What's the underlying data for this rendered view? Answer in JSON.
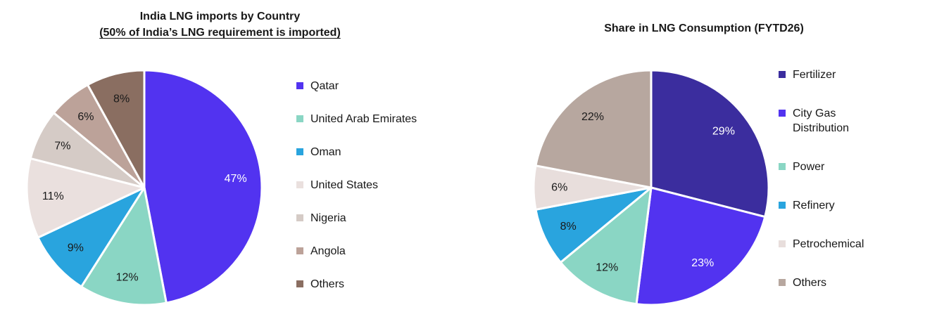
{
  "chart_data": [
    {
      "type": "pie",
      "title": "India LNG imports by Country",
      "subtitle": "(50% of India’s LNG requirement is imported)",
      "subtitle_underlined": true,
      "start_angle": "top",
      "direction": "clockwise",
      "legend_position": "right",
      "value_suffix": "%",
      "slices": [
        {
          "label": "Qatar",
          "value": 47,
          "color": "#5233F0",
          "text_color": "#FFFFFF"
        },
        {
          "label": "United Arab Emirates",
          "value": 12,
          "color": "#8AD6C4",
          "text_color": "#1A1A1A"
        },
        {
          "label": "Oman",
          "value": 9,
          "color": "#29A4DE",
          "text_color": "#1A1A1A"
        },
        {
          "label": "United States",
          "value": 11,
          "color": "#EAE0DE",
          "text_color": "#1A1A1A"
        },
        {
          "label": "Nigeria",
          "value": 7,
          "color": "#D5CBC6",
          "text_color": "#1A1A1A"
        },
        {
          "label": "Angola",
          "value": 6,
          "color": "#BCA299",
          "text_color": "#1A1A1A"
        },
        {
          "label": "Others",
          "value": 8,
          "color": "#8A6E61",
          "text_color": "#1A1A1A"
        }
      ]
    },
    {
      "type": "pie",
      "title": "Share in LNG Consumption (FYTD26)",
      "start_angle": "top",
      "direction": "clockwise",
      "legend_position": "right",
      "value_suffix": "%",
      "slices": [
        {
          "label": "Fertilizer",
          "value": 29,
          "color": "#3B2D9E",
          "text_color": "#FFFFFF"
        },
        {
          "label": "City Gas Distribution",
          "value": 23,
          "color": "#5233F0",
          "text_color": "#FFFFFF"
        },
        {
          "label": "Power",
          "value": 12,
          "color": "#8AD6C4",
          "text_color": "#1A1A1A"
        },
        {
          "label": "Refinery",
          "value": 8,
          "color": "#29A4DE",
          "text_color": "#1A1A1A"
        },
        {
          "label": "Petrochemical",
          "value": 6,
          "color": "#E8DEDC",
          "text_color": "#1A1A1A"
        },
        {
          "label": "Others",
          "value": 22,
          "color": "#B7A79F",
          "text_color": "#1A1A1A"
        }
      ]
    }
  ],
  "background_color": "#FFFFFF"
}
